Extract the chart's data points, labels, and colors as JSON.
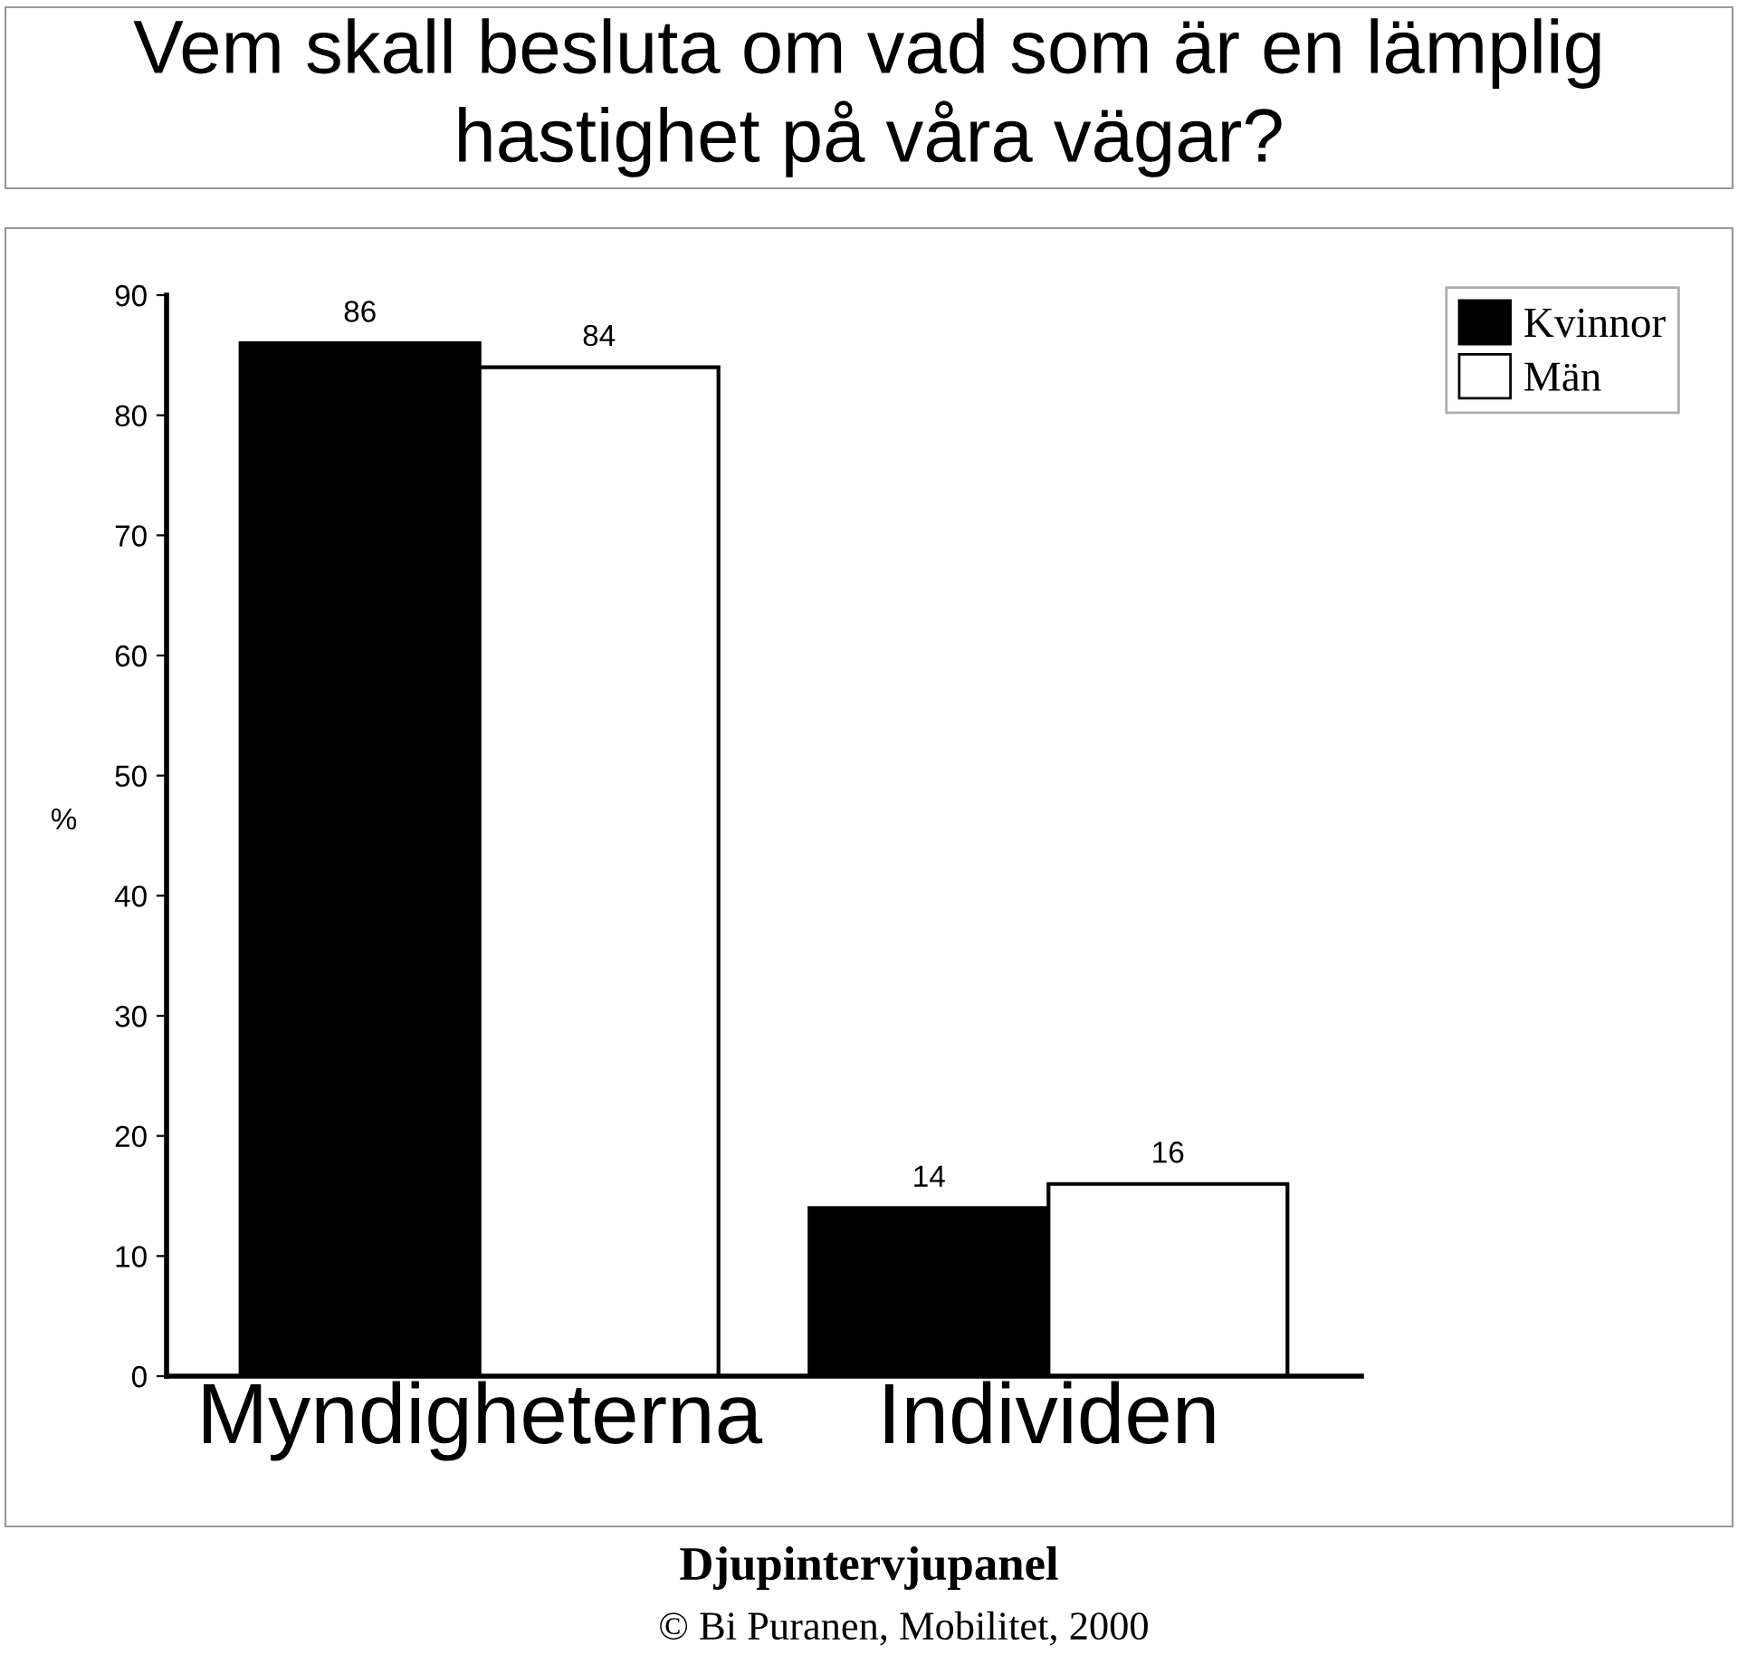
{
  "chart_data": {
    "type": "bar",
    "title": "Vem skall besluta om vad som är en lämplig hastighet på våra vägar?",
    "ylabel": "%",
    "categories": [
      "Myndigheterna",
      "Individen"
    ],
    "series": [
      {
        "name": "Kvinnor",
        "color": "#000000",
        "values": [
          86,
          14
        ]
      },
      {
        "name": "Män",
        "color": "#ffffff",
        "values": [
          84,
          16
        ]
      }
    ],
    "ylim": [
      0,
      90
    ],
    "yticks": [
      0,
      10,
      20,
      30,
      40,
      50,
      60,
      70,
      80,
      90
    ],
    "data_labels": true,
    "legend": "top right",
    "grid": false,
    "annotations": [
      "Djupintervjupanel",
      "© Bi Puranen, Mobilitet, 2000"
    ]
  }
}
